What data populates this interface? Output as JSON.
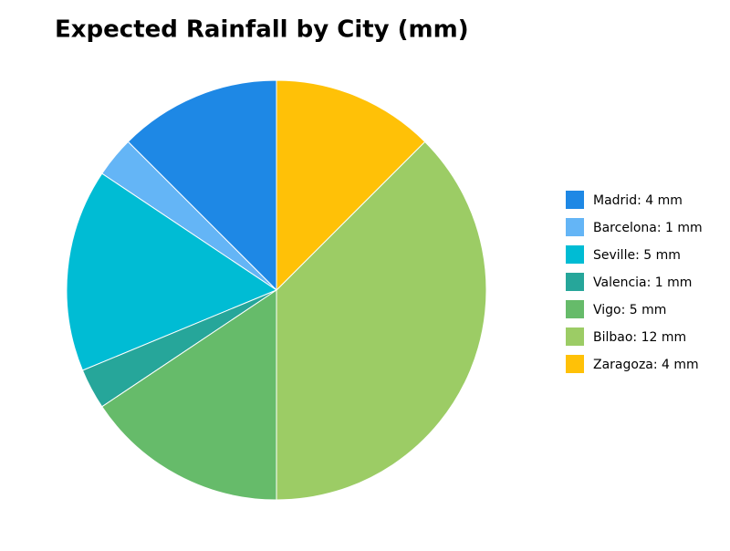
{
  "chart_data": {
    "type": "pie",
    "title": "Expected Rainfall by City (mm)",
    "labels": [
      "Madrid: 4 mm",
      "Barcelona: 1 mm",
      "Seville: 5 mm",
      "Valencia: 1 mm",
      "Vigo: 5 mm",
      "Bilbao: 12 mm",
      "Zaragoza: 4 mm"
    ],
    "values": [
      4,
      1,
      5,
      1,
      5,
      12,
      4
    ],
    "colors": [
      "#1e88e5",
      "#64b5f6",
      "#00bcd4",
      "#26a69a",
      "#66bb6a",
      "#9ccc65",
      "#ffc107"
    ],
    "legend": "right"
  }
}
